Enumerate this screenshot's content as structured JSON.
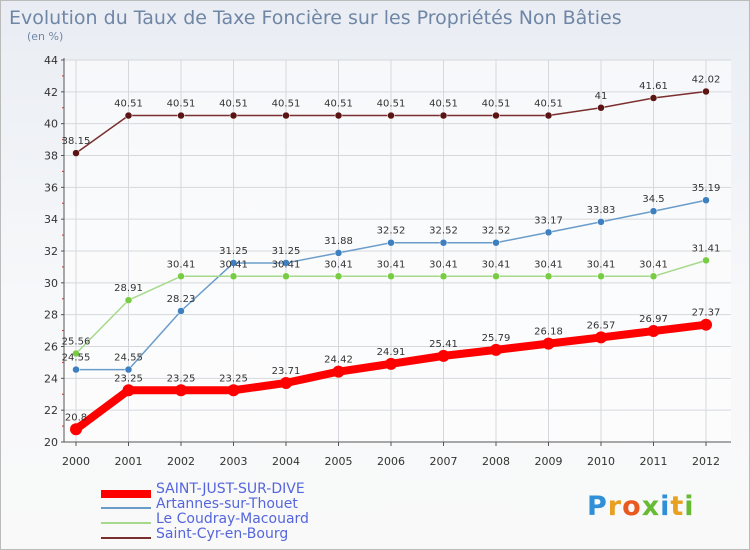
{
  "title": "Evolution du Taux de Taxe Foncière sur les Propriétés Non Bâties",
  "subtitle": "(en %)",
  "logo_text": "Proxiti",
  "chart_data": {
    "type": "line",
    "title": "Evolution du Taux de Taxe Foncière sur les Propriétés Non Bâties",
    "ylabel": "(en %)",
    "xlabel": "",
    "ylim": [
      20,
      44
    ],
    "yticks": [
      20,
      22,
      24,
      26,
      28,
      30,
      32,
      34,
      36,
      38,
      40,
      42,
      44
    ],
    "x": [
      "2000",
      "2001",
      "2002",
      "2003",
      "2004",
      "2005",
      "2006",
      "2007",
      "2008",
      "2009",
      "2010",
      "2011",
      "2012"
    ],
    "series": [
      {
        "name": "Saint-Cyr-en-Bourg",
        "color": "#7a2e2e",
        "marker": "#5a1414",
        "values": [
          38.15,
          40.51,
          40.51,
          40.51,
          40.51,
          40.51,
          40.51,
          40.51,
          40.51,
          40.51,
          41,
          41.61,
          42.02
        ],
        "labels": [
          "38.15",
          "40.51",
          "40.51",
          "40.51",
          "40.51",
          "40.51",
          "40.51",
          "40.51",
          "40.51",
          "40.51",
          "41",
          "41.61",
          "42.02"
        ]
      },
      {
        "name": "Artannes-sur-Thouet",
        "color": "#6a9cc9",
        "marker": "#3d7fbf",
        "values": [
          24.55,
          24.55,
          28.23,
          31.25,
          31.25,
          31.88,
          32.52,
          32.52,
          32.52,
          33.17,
          33.83,
          34.5,
          35.19
        ],
        "labels": [
          "24.55",
          "24.55",
          "28.23",
          "31.25",
          "31.25",
          "31.88",
          "32.52",
          "32.52",
          "32.52",
          "33.17",
          "33.83",
          "34.5",
          "35.19"
        ]
      },
      {
        "name": "Le Coudray-Macouard",
        "color": "#a6d98c",
        "marker": "#77cc44",
        "values": [
          25.56,
          28.91,
          30.41,
          30.41,
          30.41,
          30.41,
          30.41,
          30.41,
          30.41,
          30.41,
          30.41,
          30.41,
          31.41
        ],
        "labels": [
          "25.56",
          "28.91",
          "30.41",
          "30.41",
          "30.41",
          "30.41",
          "30.41",
          "30.41",
          "30.41",
          "30.41",
          "30.41",
          "30.41",
          "31.41"
        ]
      },
      {
        "name": "SAINT-JUST-SUR-DIVE",
        "color": "#ff0000",
        "marker": "#ff0000",
        "values": [
          20.8,
          23.25,
          23.25,
          23.25,
          23.71,
          24.42,
          24.91,
          25.41,
          25.79,
          26.18,
          26.57,
          26.97,
          27.37
        ],
        "labels": [
          "20.8",
          "23.25",
          "23.25",
          "23.25",
          "23.71",
          "24.42",
          "24.91",
          "25.41",
          "25.79",
          "26.18",
          "26.57",
          "26.97",
          "27.37"
        ]
      }
    ],
    "legend": [
      {
        "name": "SAINT-JUST-SUR-DIVE",
        "color": "#ff0000",
        "text_color": "#5566dd"
      },
      {
        "name": "Artannes-sur-Thouet",
        "color": "#6a9cc9",
        "text_color": "#5566dd"
      },
      {
        "name": "Le Coudray-Macouard",
        "color": "#a6d98c",
        "text_color": "#5566dd"
      },
      {
        "name": "Saint-Cyr-en-Bourg",
        "color": "#7a2e2e",
        "text_color": "#5566dd"
      }
    ]
  }
}
